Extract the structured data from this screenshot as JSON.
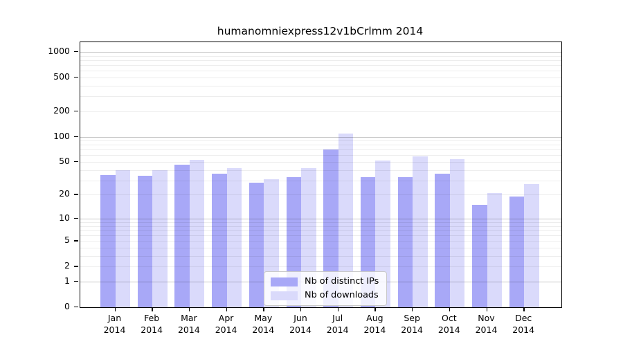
{
  "figure": {
    "title": "humanomniexpress12v1bCrlmm 2014"
  },
  "chart_data": {
    "type": "bar",
    "title": "humanomniexpress12v1bCrlmm 2014",
    "categories": [
      "Jan 2014",
      "Feb 2014",
      "Mar 2014",
      "Apr 2014",
      "May 2014",
      "Jun 2014",
      "Jul 2014",
      "Aug 2014",
      "Sep 2014",
      "Oct 2014",
      "Nov 2014",
      "Dec 2014"
    ],
    "month_labels": [
      "Jan",
      "Feb",
      "Mar",
      "Apr",
      "May",
      "Jun",
      "Jul",
      "Aug",
      "Sep",
      "Oct",
      "Nov",
      "Dec"
    ],
    "year_label": "2014",
    "series": [
      {
        "name": "Nb of distinct IPs",
        "color": "#a8a8f7",
        "values": [
          35,
          34,
          46,
          36,
          28,
          33,
          71,
          33,
          33,
          36,
          15,
          19
        ]
      },
      {
        "name": "Nb of downloads",
        "color": "#dadafb",
        "values": [
          40,
          40,
          53,
          42,
          31,
          42,
          110,
          52,
          58,
          54,
          21,
          27
        ]
      }
    ],
    "yscale": "log1p",
    "y_ticks": [
      0,
      1,
      2,
      5,
      10,
      20,
      50,
      100,
      200,
      500,
      1000
    ],
    "y_major_gridlines": [
      1,
      10,
      100,
      1000
    ],
    "ylim": [
      0,
      1300
    ],
    "grid": true,
    "legend_position": "lower center",
    "colors": {
      "distinct_ips": "#a8a8f7",
      "downloads": "#dadafb",
      "axis": "#000000",
      "major_grid": "#c7c7c7",
      "minor_grid": "#ededed"
    }
  }
}
